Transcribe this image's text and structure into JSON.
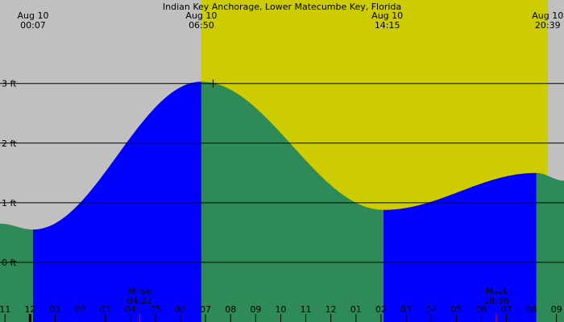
{
  "chart_data": {
    "type": "area",
    "title": "Indian Key Anchorage, Lower Matecumbe Key, Florida",
    "x_unit": "hours since midnight Aug 10",
    "y_unit": "ft",
    "xlim": [
      -1.2,
      21.3
    ],
    "ylim": [
      -1.0,
      4.4
    ],
    "yticks": [
      {
        "value": 0,
        "label": "0 ft"
      },
      {
        "value": 1,
        "label": "1 ft"
      },
      {
        "value": 2,
        "label": "2 ft"
      },
      {
        "value": 3,
        "label": "3 ft"
      }
    ],
    "top_labels": [
      {
        "x": 0.117,
        "date": "Aug 10",
        "time": "00:07"
      },
      {
        "x": 6.833,
        "date": "Aug 10",
        "time": "06:50"
      },
      {
        "x": 14.25,
        "date": "Aug 10",
        "time": "14:15"
      },
      {
        "x": 20.65,
        "date": "Aug 10",
        "time": "20:39"
      }
    ],
    "daylight": {
      "start": 6.833,
      "end": 20.65,
      "color": "#cccc00"
    },
    "night_color": "#c0c0c0",
    "series_colors": {
      "falling": "#2e8b57",
      "rising": "#0000ff"
    },
    "tide_points": [
      {
        "x": -1.2,
        "y": 0.65
      },
      {
        "x": 0.117,
        "y": 0.55,
        "type": "low"
      },
      {
        "x": 6.833,
        "y": 3.03,
        "type": "high"
      },
      {
        "x": 14.1,
        "y": 0.88,
        "type": "low"
      },
      {
        "x": 20.2,
        "y": 1.5,
        "type": "high"
      },
      {
        "x": 21.3,
        "y": 1.37
      }
    ],
    "hour_ticks": [
      {
        "x": -1,
        "label": "11"
      },
      {
        "x": 0,
        "label": "12"
      },
      {
        "x": 1,
        "label": "01"
      },
      {
        "x": 2,
        "label": "02"
      },
      {
        "x": 3,
        "label": "03"
      },
      {
        "x": 4,
        "label": "04"
      },
      {
        "x": 5,
        "label": "05"
      },
      {
        "x": 6,
        "label": "06"
      },
      {
        "x": 7,
        "label": "07"
      },
      {
        "x": 8,
        "label": "08"
      },
      {
        "x": 9,
        "label": "09"
      },
      {
        "x": 10,
        "label": "10"
      },
      {
        "x": 11,
        "label": "11"
      },
      {
        "x": 12,
        "label": "12"
      },
      {
        "x": 13,
        "label": "01"
      },
      {
        "x": 14,
        "label": "02"
      },
      {
        "x": 15,
        "label": "03"
      },
      {
        "x": 16,
        "label": "04"
      },
      {
        "x": 17,
        "label": "05"
      },
      {
        "x": 18,
        "label": "06"
      },
      {
        "x": 19,
        "label": "07"
      },
      {
        "x": 20,
        "label": "08"
      },
      {
        "x": 21,
        "label": "09"
      }
    ],
    "moon_events": [
      {
        "name": "Mrise",
        "time": "04:22",
        "x": 4.367,
        "color": "#ff0000"
      },
      {
        "name": "Mset",
        "time": "18:36",
        "x": 18.6,
        "color": "#ff0000"
      }
    ],
    "midnight_marker_x": 0,
    "crosshair": {
      "x": 7.3,
      "y": 3.0
    }
  }
}
